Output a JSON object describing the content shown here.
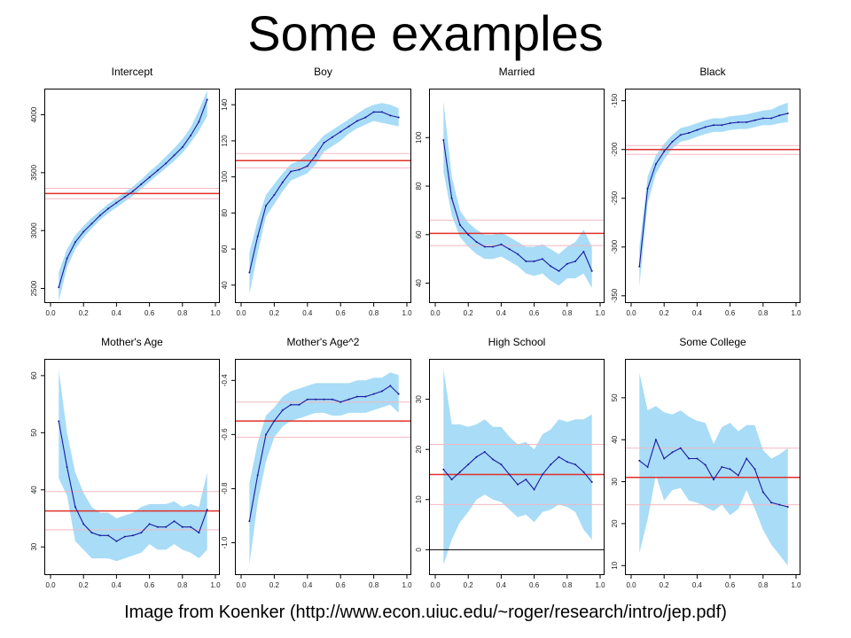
{
  "slide": {
    "title": "Some examples",
    "caption": "Image from Koenker (http://www.econ.uiuc.edu/~roger/research/intro/jep.pdf)"
  },
  "colors": {
    "band": "#a8dcf7",
    "line": "#1a1a9e",
    "ols": "#e0312a",
    "ols_ci": "#f2b8c2",
    "frame": "#000000",
    "zero": "#000000"
  },
  "chart_data": [
    {
      "type": "line",
      "title": "Intercept",
      "x": [
        0.05,
        0.1,
        0.15,
        0.2,
        0.25,
        0.3,
        0.35,
        0.4,
        0.45,
        0.5,
        0.55,
        0.6,
        0.65,
        0.7,
        0.75,
        0.8,
        0.85,
        0.9,
        0.95
      ],
      "y": [
        2510,
        2760,
        2900,
        2990,
        3060,
        3130,
        3190,
        3240,
        3290,
        3340,
        3400,
        3460,
        3520,
        3580,
        3650,
        3720,
        3820,
        3940,
        4130
      ],
      "lower": [
        2390,
        2680,
        2840,
        2940,
        3020,
        3090,
        3150,
        3200,
        3250,
        3300,
        3360,
        3420,
        3480,
        3540,
        3600,
        3670,
        3760,
        3860,
        3990
      ],
      "upper": [
        2640,
        2840,
        2960,
        3040,
        3110,
        3170,
        3230,
        3280,
        3330,
        3380,
        3440,
        3510,
        3570,
        3640,
        3710,
        3790,
        3890,
        4040,
        4210
      ],
      "ols": 3320,
      "ols_lower": 3275,
      "ols_upper": 3365,
      "xlim": [
        0,
        1
      ],
      "ylim": [
        2420,
        4180
      ],
      "xticks": [
        0.0,
        0.2,
        0.4,
        0.6,
        0.8,
        1.0
      ],
      "xtick_labels": [
        "0.0",
        "0.2",
        "0.4",
        "0.6",
        "0.8",
        "1.0"
      ],
      "yticks": [
        2500,
        3000,
        3500,
        4000
      ],
      "ytick_labels": [
        "2500",
        "3000",
        "3500",
        "4000"
      ]
    },
    {
      "type": "line",
      "title": "Boy",
      "x": [
        0.05,
        0.1,
        0.15,
        0.2,
        0.25,
        0.3,
        0.35,
        0.4,
        0.45,
        0.5,
        0.55,
        0.6,
        0.65,
        0.7,
        0.75,
        0.8,
        0.85,
        0.9,
        0.95
      ],
      "y": [
        47,
        67,
        84,
        90,
        97,
        103,
        104,
        106,
        112,
        119,
        122,
        125,
        128,
        131,
        133,
        136,
        136,
        134,
        133
      ],
      "lower": [
        35,
        58,
        78,
        85,
        92,
        98,
        100,
        102,
        107,
        114,
        117,
        120,
        124,
        127,
        129,
        131,
        130,
        129,
        128
      ],
      "upper": [
        58,
        76,
        90,
        96,
        102,
        107,
        109,
        113,
        118,
        123,
        126,
        129,
        132,
        135,
        138,
        140,
        141,
        140,
        138
      ],
      "ols": 109,
      "ols_lower": 105,
      "ols_upper": 113,
      "xlim": [
        0,
        1
      ],
      "ylim": [
        33,
        146
      ],
      "xticks": [
        0.0,
        0.2,
        0.4,
        0.6,
        0.8,
        1.0
      ],
      "xtick_labels": [
        "0.0",
        "0.2",
        "0.4",
        "0.6",
        "0.8",
        "1.0"
      ],
      "yticks": [
        40,
        60,
        80,
        100,
        120,
        140
      ],
      "ytick_labels": [
        "40",
        "60",
        "80",
        "100",
        "120",
        "140"
      ]
    },
    {
      "type": "line",
      "title": "Married",
      "x": [
        0.05,
        0.1,
        0.15,
        0.2,
        0.25,
        0.3,
        0.35,
        0.4,
        0.45,
        0.5,
        0.55,
        0.6,
        0.65,
        0.7,
        0.75,
        0.8,
        0.85,
        0.9,
        0.95
      ],
      "y": [
        99,
        75,
        64,
        60,
        57,
        55,
        55,
        56,
        54,
        52,
        49,
        49,
        50,
        47,
        45,
        48,
        49,
        53,
        45
      ],
      "lower": [
        86,
        68,
        59,
        55,
        52,
        50,
        50,
        51,
        49,
        47,
        44,
        43,
        44,
        41,
        39,
        42,
        42,
        44,
        38
      ],
      "upper": [
        115,
        84,
        70,
        65,
        62,
        60,
        60,
        61,
        59,
        57,
        55,
        55,
        56,
        54,
        52,
        55,
        57,
        62,
        55
      ],
      "ols": 60.5,
      "ols_lower": 55.5,
      "ols_upper": 66,
      "xlim": [
        0,
        1
      ],
      "ylim": [
        34,
        118
      ],
      "xticks": [
        0.0,
        0.2,
        0.4,
        0.6,
        0.8,
        1.0
      ],
      "xtick_labels": [
        "0.0",
        "0.2",
        "0.4",
        "0.6",
        "0.8",
        "1.0"
      ],
      "yticks": [
        40,
        60,
        80,
        100
      ],
      "ytick_labels": [
        "40",
        "60",
        "80",
        "100"
      ]
    },
    {
      "type": "line",
      "title": "Black",
      "x": [
        0.05,
        0.1,
        0.15,
        0.2,
        0.25,
        0.3,
        0.35,
        0.4,
        0.45,
        0.5,
        0.55,
        0.6,
        0.65,
        0.7,
        0.75,
        0.8,
        0.85,
        0.9,
        0.95
      ],
      "y": [
        -320,
        -240,
        -215,
        -202,
        -192,
        -185,
        -183,
        -180,
        -177,
        -175,
        -175,
        -173,
        -172,
        -172,
        -170,
        -168,
        -168,
        -165,
        -163
      ],
      "lower": [
        -340,
        -255,
        -225,
        -210,
        -199,
        -192,
        -190,
        -187,
        -184,
        -182,
        -182,
        -180,
        -179,
        -179,
        -177,
        -175,
        -175,
        -173,
        -172
      ],
      "upper": [
        -300,
        -228,
        -206,
        -194,
        -185,
        -178,
        -176,
        -173,
        -170,
        -168,
        -168,
        -166,
        -165,
        -164,
        -162,
        -160,
        -159,
        -155,
        -152
      ],
      "ols": -200,
      "ols_lower": -205,
      "ols_upper": -196,
      "xlim": [
        0,
        1
      ],
      "ylim": [
        -352,
        -143
      ],
      "xticks": [
        0.0,
        0.2,
        0.4,
        0.6,
        0.8,
        1.0
      ],
      "xtick_labels": [
        "0.0",
        "0.2",
        "0.4",
        "0.6",
        "0.8",
        "1.0"
      ],
      "yticks": [
        -350,
        -300,
        -250,
        -200,
        -150
      ],
      "ytick_labels": [
        "-350",
        "-300",
        "-250",
        "-200",
        "-150"
      ]
    },
    {
      "type": "line",
      "title": "Mother's Age",
      "x": [
        0.05,
        0.1,
        0.15,
        0.2,
        0.25,
        0.3,
        0.35,
        0.4,
        0.45,
        0.5,
        0.55,
        0.6,
        0.65,
        0.7,
        0.75,
        0.8,
        0.85,
        0.9,
        0.95
      ],
      "y": [
        52,
        44,
        37,
        34,
        32.5,
        32,
        32,
        31,
        31.8,
        32,
        32.5,
        34,
        33.5,
        33.5,
        34.5,
        33.5,
        33.5,
        32.5,
        36.5
      ],
      "lower": [
        42,
        39,
        31,
        29.5,
        28,
        28,
        28,
        27.5,
        28,
        28.5,
        29,
        30.5,
        29.5,
        29.5,
        30.5,
        29.5,
        29,
        28,
        29.5
      ],
      "upper": [
        61,
        50,
        43,
        39.5,
        37,
        36,
        36,
        35,
        35.5,
        36,
        37,
        37.5,
        37.5,
        37.5,
        38,
        37,
        37.5,
        37,
        43
      ],
      "ols": 36.3,
      "ols_lower": 33,
      "ols_upper": 39.7,
      "xlim": [
        0,
        1
      ],
      "ylim": [
        26,
        62
      ],
      "xticks": [
        0.0,
        0.2,
        0.4,
        0.6,
        0.8,
        1.0
      ],
      "xtick_labels": [
        "0.0",
        "0.2",
        "0.4",
        "0.6",
        "0.8",
        "1.0"
      ],
      "yticks": [
        30,
        40,
        50,
        60
      ],
      "ytick_labels": [
        "30",
        "40",
        "50",
        "60"
      ]
    },
    {
      "type": "line",
      "title": "Mother's Age^2",
      "x": [
        0.05,
        0.1,
        0.15,
        0.2,
        0.25,
        0.3,
        0.35,
        0.4,
        0.45,
        0.5,
        0.55,
        0.6,
        0.65,
        0.7,
        0.75,
        0.8,
        0.85,
        0.9,
        0.95
      ],
      "y": [
        -0.92,
        -0.75,
        -0.6,
        -0.55,
        -0.51,
        -0.49,
        -0.49,
        -0.47,
        -0.47,
        -0.47,
        -0.47,
        -0.48,
        -0.47,
        -0.46,
        -0.46,
        -0.45,
        -0.44,
        -0.42,
        -0.45
      ],
      "lower": [
        -1.08,
        -0.85,
        -0.7,
        -0.61,
        -0.57,
        -0.55,
        -0.54,
        -0.53,
        -0.52,
        -0.52,
        -0.53,
        -0.53,
        -0.52,
        -0.52,
        -0.52,
        -0.51,
        -0.5,
        -0.49,
        -0.52
      ],
      "upper": [
        -0.78,
        -0.63,
        -0.53,
        -0.5,
        -0.46,
        -0.44,
        -0.43,
        -0.42,
        -0.41,
        -0.41,
        -0.41,
        -0.41,
        -0.41,
        -0.4,
        -0.4,
        -0.39,
        -0.39,
        -0.37,
        -0.38
      ],
      "ols": -0.55,
      "ols_lower": -0.61,
      "ols_upper": -0.48,
      "xlim": [
        0,
        1
      ],
      "ylim": [
        -1.1,
        -0.34
      ],
      "xticks": [
        0.0,
        0.2,
        0.4,
        0.6,
        0.8,
        1.0
      ],
      "xtick_labels": [
        "0.0",
        "0.2",
        "0.4",
        "0.6",
        "0.8",
        "1.0"
      ],
      "yticks": [
        -1.0,
        -0.8,
        -0.6,
        -0.4
      ],
      "ytick_labels": [
        "-1.0",
        "-0.8",
        "-0.6",
        "-0.4"
      ]
    },
    {
      "type": "line",
      "title": "High School",
      "x": [
        0.05,
        0.1,
        0.15,
        0.2,
        0.25,
        0.3,
        0.35,
        0.4,
        0.45,
        0.5,
        0.55,
        0.6,
        0.65,
        0.7,
        0.75,
        0.8,
        0.85,
        0.9,
        0.95
      ],
      "y": [
        16,
        14,
        15.5,
        17,
        18.5,
        19.5,
        18,
        17,
        15,
        13,
        14,
        12,
        15,
        17,
        18.5,
        17.5,
        17,
        15.5,
        13.5
      ],
      "lower": [
        -3,
        2,
        5.5,
        7.5,
        10,
        11,
        10,
        9.5,
        8,
        6.5,
        7,
        5.5,
        7.5,
        8,
        9,
        8.5,
        7.5,
        4,
        2
      ],
      "upper": [
        36,
        25,
        25,
        24.5,
        25,
        26,
        24.5,
        24.5,
        22.5,
        21,
        21.5,
        20,
        23,
        24,
        26,
        25.5,
        26,
        26,
        27
      ],
      "ols": 15,
      "ols_lower": 9,
      "ols_upper": 21,
      "zero_line": 0,
      "xlim": [
        0,
        1
      ],
      "ylim": [
        -4,
        37
      ],
      "xticks": [
        0.0,
        0.2,
        0.4,
        0.6,
        0.8,
        1.0
      ],
      "xtick_labels": [
        "0.0",
        "0.2",
        "0.4",
        "0.6",
        "0.8",
        "1.0"
      ],
      "yticks": [
        0,
        10,
        20,
        30
      ],
      "ytick_labels": [
        "0",
        "10",
        "20",
        "30"
      ]
    },
    {
      "type": "line",
      "title": "Some College",
      "x": [
        0.05,
        0.1,
        0.15,
        0.2,
        0.25,
        0.3,
        0.35,
        0.4,
        0.45,
        0.5,
        0.55,
        0.6,
        0.65,
        0.7,
        0.75,
        0.8,
        0.85,
        0.9,
        0.95
      ],
      "y": [
        35,
        33.5,
        40,
        35.5,
        37,
        38,
        35.5,
        35.5,
        34,
        30.5,
        33.5,
        33,
        31.5,
        35.5,
        33,
        27.5,
        25,
        24.5,
        24
      ],
      "lower": [
        13,
        21,
        31.5,
        25.5,
        28,
        28.5,
        25.5,
        25,
        24,
        23,
        24.5,
        22,
        23.5,
        28,
        23.5,
        18.5,
        15,
        12.5,
        10
      ],
      "upper": [
        56,
        47,
        48,
        46.5,
        46,
        47,
        45.5,
        44.5,
        44,
        39,
        43,
        44,
        42,
        43.5,
        43.5,
        37.5,
        35.5,
        36.5,
        38
      ],
      "ols": 31,
      "ols_lower": 24.5,
      "ols_upper": 38,
      "xlim": [
        0,
        1
      ],
      "ylim": [
        9,
        58
      ],
      "xticks": [
        0.0,
        0.2,
        0.4,
        0.6,
        0.8,
        1.0
      ],
      "xtick_labels": [
        "0.0",
        "0.2",
        "0.4",
        "0.6",
        "0.8",
        "1.0"
      ],
      "yticks": [
        10,
        20,
        30,
        40,
        50
      ],
      "ytick_labels": [
        "10",
        "20",
        "30",
        "40",
        "50"
      ]
    }
  ]
}
